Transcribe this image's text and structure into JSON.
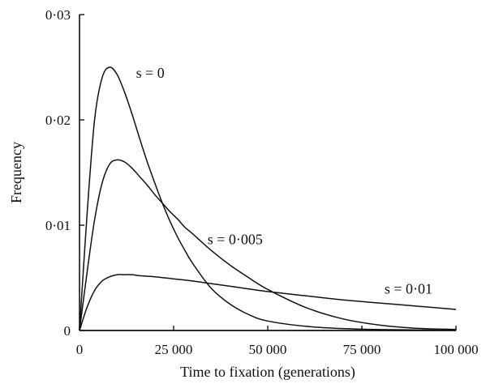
{
  "chart_data": {
    "type": "line",
    "title": "",
    "xlabel": "Time to fixation (generations)",
    "ylabel": "Frequency",
    "xlim": [
      0,
      100000
    ],
    "ylim": [
      0,
      0.03
    ],
    "x_ticks": [
      0,
      25000,
      50000,
      75000,
      100000
    ],
    "x_tick_labels": [
      "0",
      "25 000",
      "50 000",
      "75 000",
      "100 000"
    ],
    "y_ticks": [
      0,
      0.01,
      0.02,
      0.03
    ],
    "y_tick_labels": [
      "0",
      "0·01",
      "0·02",
      "0·03"
    ],
    "grid": false,
    "legend": "none (curves labelled directly)",
    "series": [
      {
        "name": "s = 0",
        "x": [
          0,
          2000,
          4000,
          6000,
          8000,
          10000,
          12000,
          14000,
          16000,
          18000,
          20000,
          22000,
          24000,
          26000,
          28000,
          30000,
          35000,
          40000,
          45000,
          50000,
          60000,
          70000,
          80000,
          90000,
          100000
        ],
        "y": [
          0,
          0.011,
          0.02,
          0.024,
          0.025,
          0.0243,
          0.0226,
          0.0205,
          0.0182,
          0.016,
          0.014,
          0.0121,
          0.0104,
          0.0089,
          0.0076,
          0.0064,
          0.004,
          0.0025,
          0.0015,
          0.0009,
          0.0004,
          0.00018,
          9e-05,
          5e-05,
          3e-05
        ]
      },
      {
        "name": "s = 0·005",
        "x": [
          0,
          2000,
          4000,
          6000,
          8000,
          10000,
          12000,
          14000,
          16000,
          18000,
          20000,
          22000,
          24000,
          26000,
          28000,
          30000,
          35000,
          40000,
          45000,
          50000,
          60000,
          70000,
          80000,
          90000,
          100000
        ],
        "y": [
          0,
          0.0055,
          0.0105,
          0.014,
          0.0158,
          0.0162,
          0.016,
          0.0154,
          0.0146,
          0.0138,
          0.0129,
          0.0121,
          0.0113,
          0.0106,
          0.0098,
          0.0092,
          0.0076,
          0.0062,
          0.005,
          0.0039,
          0.0022,
          0.0011,
          0.0005,
          0.0002,
          0.0001
        ]
      },
      {
        "name": "s = 0·01",
        "x": [
          0,
          2000,
          4000,
          6000,
          8000,
          10000,
          12000,
          14000,
          16000,
          20000,
          25000,
          30000,
          40000,
          50000,
          60000,
          70000,
          80000,
          90000,
          100000
        ],
        "y": [
          0,
          0.0022,
          0.0038,
          0.0047,
          0.0051,
          0.0053,
          0.0053,
          0.0053,
          0.0052,
          0.0051,
          0.0049,
          0.0047,
          0.0042,
          0.0037,
          0.0033,
          0.0029,
          0.0026,
          0.0023,
          0.002
        ]
      },
      {
        "name": "",
        "x": [
          0,
          100000
        ],
        "y": [
          0,
          0
        ]
      }
    ],
    "annotations": [
      {
        "text": "s = 0",
        "x": 15000,
        "y": 0.024
      },
      {
        "text": "s = 0·005",
        "x": 34000,
        "y": 0.0082
      },
      {
        "text": "s = 0·01",
        "x": 81000,
        "y": 0.0035
      }
    ]
  }
}
